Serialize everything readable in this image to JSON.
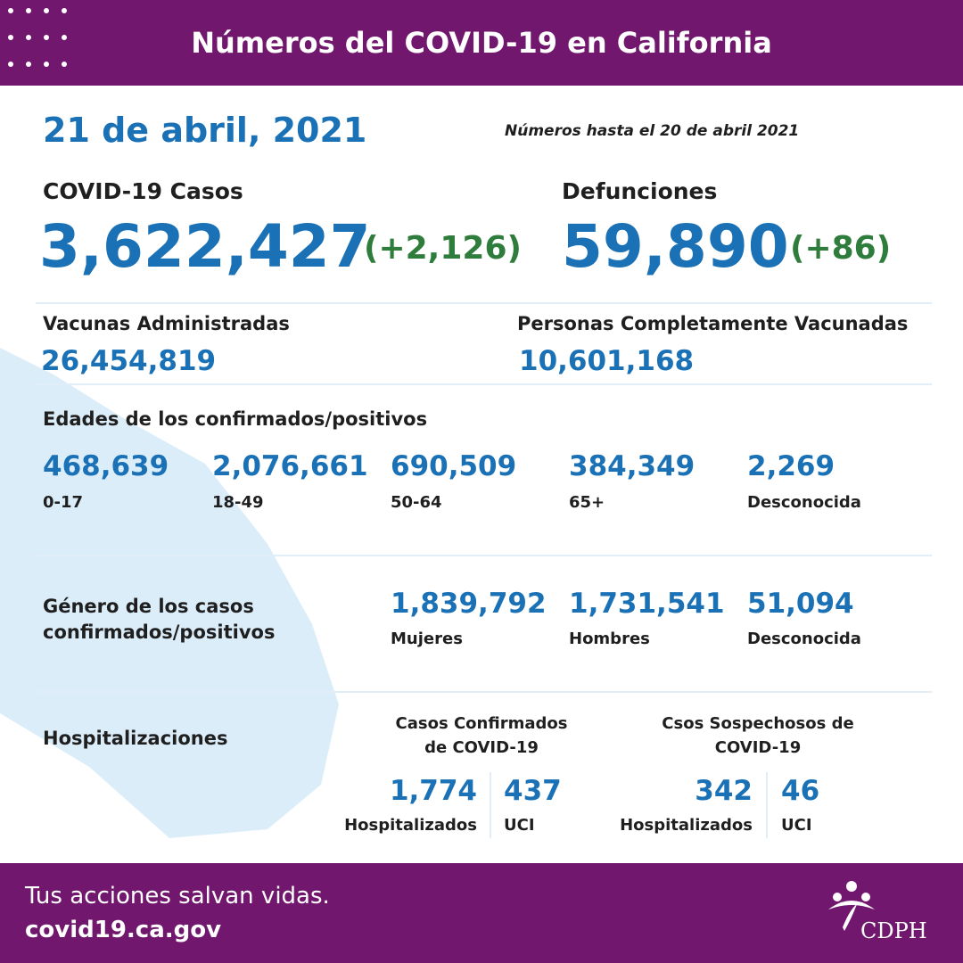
{
  "header": {
    "title": "Números del COVID-19 en California"
  },
  "date": "21 de abril, 2021",
  "note": "Números hasta el 20 de abril 2021",
  "cases": {
    "label": "COVID-19 Casos",
    "value": "3,622,427",
    "change": "(+2,126)"
  },
  "deaths": {
    "label": "Defunciones",
    "value": "59,890",
    "change": "(+86)"
  },
  "vaccines": {
    "label": "Vacunas Administradas",
    "value": "26,454,819"
  },
  "fully_vaccinated": {
    "label": "Personas Completamente Vacunadas",
    "value": "10,601,168"
  },
  "ages": {
    "title": "Edades de los confirmados/positivos",
    "groups": [
      {
        "value": "468,639",
        "label": "0-17"
      },
      {
        "value": "2,076,661",
        "label": "18-49"
      },
      {
        "value": "690,509",
        "label": "50-64"
      },
      {
        "value": "384,349",
        "label": "65+"
      },
      {
        "value": "2,269",
        "label": "Desconocida"
      }
    ]
  },
  "gender": {
    "title": "Género de los casos confirmados/positivos",
    "groups": [
      {
        "value": "1,839,792",
        "label": "Mujeres"
      },
      {
        "value": "1,731,541",
        "label": "Hombres"
      },
      {
        "value": "51,094",
        "label": "Desconocida"
      }
    ]
  },
  "hospitalizations": {
    "title": "Hospitalizaciones",
    "confirmed": {
      "title": "Casos Confirmados de COVID-19",
      "hospitalized": {
        "value": "1,774",
        "label": "Hospitalizados"
      },
      "icu": {
        "value": "437",
        "label": "UCI"
      }
    },
    "suspected": {
      "title": "Csos Sospechosos de COVID-19",
      "hospitalized": {
        "value": "342",
        "label": "Hospitalizados"
      },
      "icu": {
        "value": "46",
        "label": "UCI"
      }
    }
  },
  "footer": {
    "tagline": "Tus acciones salvan vidas.",
    "url": "covid19.ca.gov",
    "logo": "CDPH"
  }
}
